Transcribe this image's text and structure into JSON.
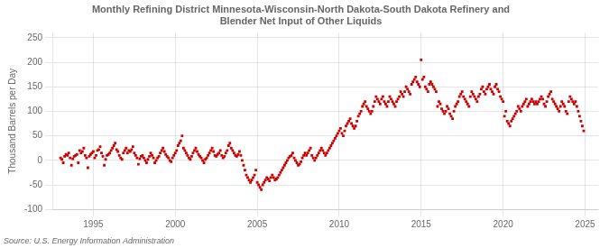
{
  "chart_data": {
    "type": "scatter",
    "title": [
      "Monthly Refining District Minnesota-Wisconsin-North Dakota-South Dakota Refinery and",
      "Blender Net Input of Other Liquids"
    ],
    "ylabel": "Thousand Barrels per Day",
    "annotations": [
      "Source: U.S. Energy Information Administration"
    ],
    "xlim": [
      1992.5,
      2025.8
    ],
    "ylim": [
      -100,
      260
    ],
    "xticks": [
      1995,
      2000,
      2005,
      2010,
      2015,
      2020,
      2025
    ],
    "yticks": [
      -100,
      -50,
      0,
      50,
      100,
      150,
      200,
      250
    ],
    "grid": true,
    "color": "#cc0000",
    "marker": "square",
    "x": [
      1993.0,
      1993.083,
      1993.167,
      1993.25,
      1993.333,
      1993.417,
      1993.5,
      1993.583,
      1993.667,
      1993.75,
      1993.833,
      1993.917,
      1994.0,
      1994.083,
      1994.167,
      1994.25,
      1994.333,
      1994.417,
      1994.5,
      1994.583,
      1994.667,
      1994.75,
      1994.833,
      1994.917,
      1995.0,
      1995.083,
      1995.167,
      1995.25,
      1995.333,
      1995.417,
      1995.5,
      1995.583,
      1995.667,
      1995.75,
      1995.833,
      1995.917,
      1996.0,
      1996.083,
      1996.167,
      1996.25,
      1996.333,
      1996.417,
      1996.5,
      1996.583,
      1996.667,
      1996.75,
      1996.833,
      1996.917,
      1997.0,
      1997.083,
      1997.167,
      1997.25,
      1997.333,
      1997.417,
      1997.5,
      1997.583,
      1997.667,
      1997.75,
      1997.833,
      1997.917,
      1998.0,
      1998.083,
      1998.167,
      1998.25,
      1998.333,
      1998.417,
      1998.5,
      1998.583,
      1998.667,
      1998.75,
      1998.833,
      1998.917,
      1999.0,
      1999.083,
      1999.167,
      1999.25,
      1999.333,
      1999.417,
      1999.5,
      1999.583,
      1999.667,
      1999.75,
      1999.833,
      1999.917,
      2000.0,
      2000.083,
      2000.167,
      2000.25,
      2000.333,
      2000.417,
      2000.5,
      2000.583,
      2000.667,
      2000.75,
      2000.833,
      2000.917,
      2001.0,
      2001.083,
      2001.167,
      2001.25,
      2001.333,
      2001.417,
      2001.5,
      2001.583,
      2001.667,
      2001.75,
      2001.833,
      2001.917,
      2002.0,
      2002.083,
      2002.167,
      2002.25,
      2002.333,
      2002.417,
      2002.5,
      2002.583,
      2002.667,
      2002.75,
      2002.833,
      2002.917,
      2003.0,
      2003.083,
      2003.167,
      2003.25,
      2003.333,
      2003.417,
      2003.5,
      2003.583,
      2003.667,
      2003.75,
      2003.833,
      2003.917,
      2004.0,
      2004.083,
      2004.167,
      2004.25,
      2004.333,
      2004.417,
      2004.5,
      2004.583,
      2004.667,
      2004.75,
      2004.833,
      2004.917,
      2005.0,
      2005.083,
      2005.167,
      2005.25,
      2005.333,
      2005.417,
      2005.5,
      2005.583,
      2005.667,
      2005.75,
      2005.833,
      2005.917,
      2006.0,
      2006.083,
      2006.167,
      2006.25,
      2006.333,
      2006.417,
      2006.5,
      2006.583,
      2006.667,
      2006.75,
      2006.833,
      2006.917,
      2007.0,
      2007.083,
      2007.167,
      2007.25,
      2007.333,
      2007.417,
      2007.5,
      2007.583,
      2007.667,
      2007.75,
      2007.833,
      2007.917,
      2008.0,
      2008.083,
      2008.167,
      2008.25,
      2008.333,
      2008.417,
      2008.5,
      2008.583,
      2008.667,
      2008.75,
      2008.833,
      2008.917,
      2009.0,
      2009.083,
      2009.167,
      2009.25,
      2009.333,
      2009.417,
      2009.5,
      2009.583,
      2009.667,
      2009.75,
      2009.833,
      2009.917,
      2010.0,
      2010.083,
      2010.167,
      2010.25,
      2010.333,
      2010.417,
      2010.5,
      2010.583,
      2010.667,
      2010.75,
      2010.833,
      2010.917,
      2011.0,
      2011.083,
      2011.167,
      2011.25,
      2011.333,
      2011.417,
      2011.5,
      2011.583,
      2011.667,
      2011.75,
      2011.833,
      2011.917,
      2012.0,
      2012.083,
      2012.167,
      2012.25,
      2012.333,
      2012.417,
      2012.5,
      2012.583,
      2012.667,
      2012.75,
      2012.833,
      2012.917,
      2013.0,
      2013.083,
      2013.167,
      2013.25,
      2013.333,
      2013.417,
      2013.5,
      2013.583,
      2013.667,
      2013.75,
      2013.833,
      2013.917,
      2014.0,
      2014.083,
      2014.167,
      2014.25,
      2014.333,
      2014.417,
      2014.5,
      2014.583,
      2014.667,
      2014.75,
      2014.833,
      2014.917,
      2015.0,
      2015.083,
      2015.167,
      2015.25,
      2015.333,
      2015.417,
      2015.5,
      2015.583,
      2015.667,
      2015.75,
      2015.833,
      2015.917,
      2016.0,
      2016.083,
      2016.167,
      2016.25,
      2016.333,
      2016.417,
      2016.5,
      2016.583,
      2016.667,
      2016.75,
      2016.833,
      2016.917,
      2017.0,
      2017.083,
      2017.167,
      2017.25,
      2017.333,
      2017.417,
      2017.5,
      2017.583,
      2017.667,
      2017.75,
      2017.833,
      2017.917,
      2018.0,
      2018.083,
      2018.167,
      2018.25,
      2018.333,
      2018.417,
      2018.5,
      2018.583,
      2018.667,
      2018.75,
      2018.833,
      2018.917,
      2019.0,
      2019.083,
      2019.167,
      2019.25,
      2019.333,
      2019.417,
      2019.5,
      2019.583,
      2019.667,
      2019.75,
      2019.833,
      2019.917,
      2020.0,
      2020.083,
      2020.167,
      2020.25,
      2020.333,
      2020.417,
      2020.5,
      2020.583,
      2020.667,
      2020.75,
      2020.833,
      2020.917,
      2021.0,
      2021.083,
      2021.167,
      2021.25,
      2021.333,
      2021.417,
      2021.5,
      2021.583,
      2021.667,
      2021.75,
      2021.833,
      2021.917,
      2022.0,
      2022.083,
      2022.167,
      2022.25,
      2022.333,
      2022.417,
      2022.5,
      2022.583,
      2022.667,
      2022.75,
      2022.833,
      2022.917,
      2023.0,
      2023.083,
      2023.167,
      2023.25,
      2023.333,
      2023.417,
      2023.5,
      2023.583,
      2023.667,
      2023.75,
      2023.833,
      2023.917,
      2024.0,
      2024.083,
      2024.167,
      2024.25,
      2024.333,
      2024.417,
      2024.5,
      2024.583,
      2024.667,
      2024.75,
      2024.833,
      2024.917
    ],
    "values": [
      5,
      2,
      -5,
      8,
      12,
      10,
      15,
      5,
      -10,
      3,
      8,
      10,
      12,
      -5,
      20,
      15,
      18,
      25,
      10,
      5,
      -15,
      8,
      12,
      15,
      18,
      5,
      10,
      20,
      22,
      28,
      15,
      8,
      -10,
      2,
      10,
      12,
      15,
      20,
      25,
      30,
      35,
      22,
      18,
      10,
      5,
      2,
      15,
      20,
      25,
      15,
      20,
      18,
      22,
      28,
      15,
      10,
      5,
      -8,
      3,
      8,
      10,
      5,
      0,
      -5,
      2,
      8,
      15,
      10,
      5,
      -5,
      0,
      5,
      8,
      15,
      20,
      25,
      18,
      12,
      8,
      5,
      0,
      -3,
      5,
      10,
      15,
      20,
      30,
      35,
      40,
      50,
      25,
      20,
      15,
      10,
      5,
      2,
      8,
      15,
      20,
      25,
      18,
      12,
      8,
      5,
      0,
      -5,
      2,
      5,
      10,
      15,
      20,
      25,
      18,
      10,
      8,
      12,
      15,
      20,
      10,
      5,
      8,
      15,
      20,
      30,
      35,
      25,
      20,
      15,
      10,
      8,
      12,
      18,
      10,
      0,
      -10,
      -20,
      -30,
      -35,
      -40,
      -45,
      -40,
      -35,
      -30,
      -20,
      -45,
      -50,
      -55,
      -60,
      -50,
      -45,
      -40,
      -35,
      -38,
      -42,
      -35,
      -30,
      -35,
      -40,
      -38,
      -35,
      -30,
      -25,
      -20,
      -15,
      -10,
      -5,
      0,
      5,
      8,
      10,
      15,
      5,
      0,
      -5,
      -10,
      -8,
      -3,
      5,
      10,
      15,
      10,
      15,
      20,
      25,
      10,
      5,
      0,
      5,
      10,
      15,
      20,
      25,
      20,
      15,
      10,
      15,
      20,
      25,
      30,
      35,
      40,
      45,
      50,
      55,
      60,
      65,
      55,
      50,
      60,
      70,
      75,
      80,
      85,
      75,
      70,
      65,
      70,
      80,
      90,
      95,
      100,
      110,
      115,
      120,
      110,
      105,
      100,
      95,
      100,
      110,
      120,
      130,
      125,
      120,
      115,
      125,
      130,
      120,
      115,
      110,
      120,
      130,
      125,
      120,
      115,
      110,
      120,
      125,
      130,
      140,
      135,
      130,
      140,
      150,
      145,
      140,
      135,
      155,
      160,
      165,
      170,
      160,
      155,
      150,
      205,
      165,
      170,
      150,
      145,
      140,
      155,
      160,
      155,
      150,
      145,
      140,
      110,
      120,
      115,
      105,
      100,
      95,
      100,
      110,
      105,
      95,
      90,
      85,
      100,
      110,
      115,
      120,
      130,
      135,
      140,
      130,
      125,
      120,
      115,
      110,
      130,
      140,
      135,
      130,
      125,
      120,
      130,
      135,
      145,
      150,
      140,
      135,
      145,
      150,
      155,
      145,
      140,
      135,
      150,
      155,
      145,
      140,
      130,
      125,
      120,
      90,
      100,
      80,
      75,
      70,
      80,
      85,
      90,
      95,
      100,
      110,
      105,
      100,
      110,
      115,
      120,
      125,
      110,
      115,
      120,
      125,
      120,
      115,
      120,
      115,
      120,
      125,
      130,
      125,
      115,
      110,
      120,
      130,
      135,
      140,
      125,
      120,
      115,
      110,
      105,
      100,
      110,
      120,
      115,
      110,
      100,
      95,
      120,
      130,
      125,
      120,
      115,
      120,
      110,
      100,
      90,
      80,
      70,
      60
    ]
  }
}
